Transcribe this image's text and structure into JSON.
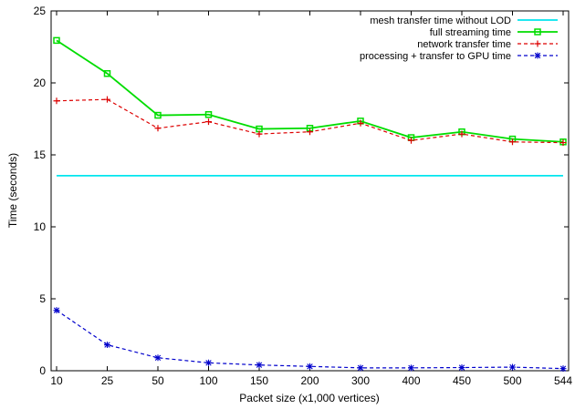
{
  "chart_data": {
    "type": "line",
    "title": "",
    "xlabel": "Packet size (x1,000 vertices)",
    "ylabel": "Time (seconds)",
    "categories": [
      "10",
      "25",
      "50",
      "100",
      "150",
      "200",
      "300",
      "400",
      "450",
      "500",
      "544"
    ],
    "ylim": [
      0,
      25
    ],
    "yticks": [
      0,
      5,
      10,
      15,
      20,
      25
    ],
    "grid": false,
    "legend_position": "top-right",
    "series": [
      {
        "name": "mesh transfer time without LOD",
        "color": "#00e5ee",
        "dash": "solid",
        "marker": "none",
        "values": [
          13.55,
          13.55,
          13.55,
          13.55,
          13.55,
          13.55,
          13.55,
          13.55,
          13.55,
          13.55,
          13.55
        ]
      },
      {
        "name": "full streaming time",
        "color": "#00dd00",
        "dash": "solid",
        "marker": "square",
        "values": [
          22.95,
          20.65,
          17.75,
          17.8,
          16.8,
          16.85,
          17.35,
          16.2,
          16.6,
          16.1,
          15.9
        ]
      },
      {
        "name": "network transfer time",
        "color": "#dd0000",
        "dash": "dashed",
        "marker": "plus",
        "values": [
          18.75,
          18.85,
          16.85,
          17.3,
          16.45,
          16.6,
          17.2,
          16.0,
          16.45,
          15.9,
          15.85
        ]
      },
      {
        "name": "processing + transfer to GPU time",
        "color": "#0000cc",
        "dash": "dashed",
        "marker": "star",
        "values": [
          4.2,
          1.8,
          0.9,
          0.55,
          0.4,
          0.3,
          0.2,
          0.2,
          0.22,
          0.25,
          0.15
        ]
      }
    ]
  }
}
